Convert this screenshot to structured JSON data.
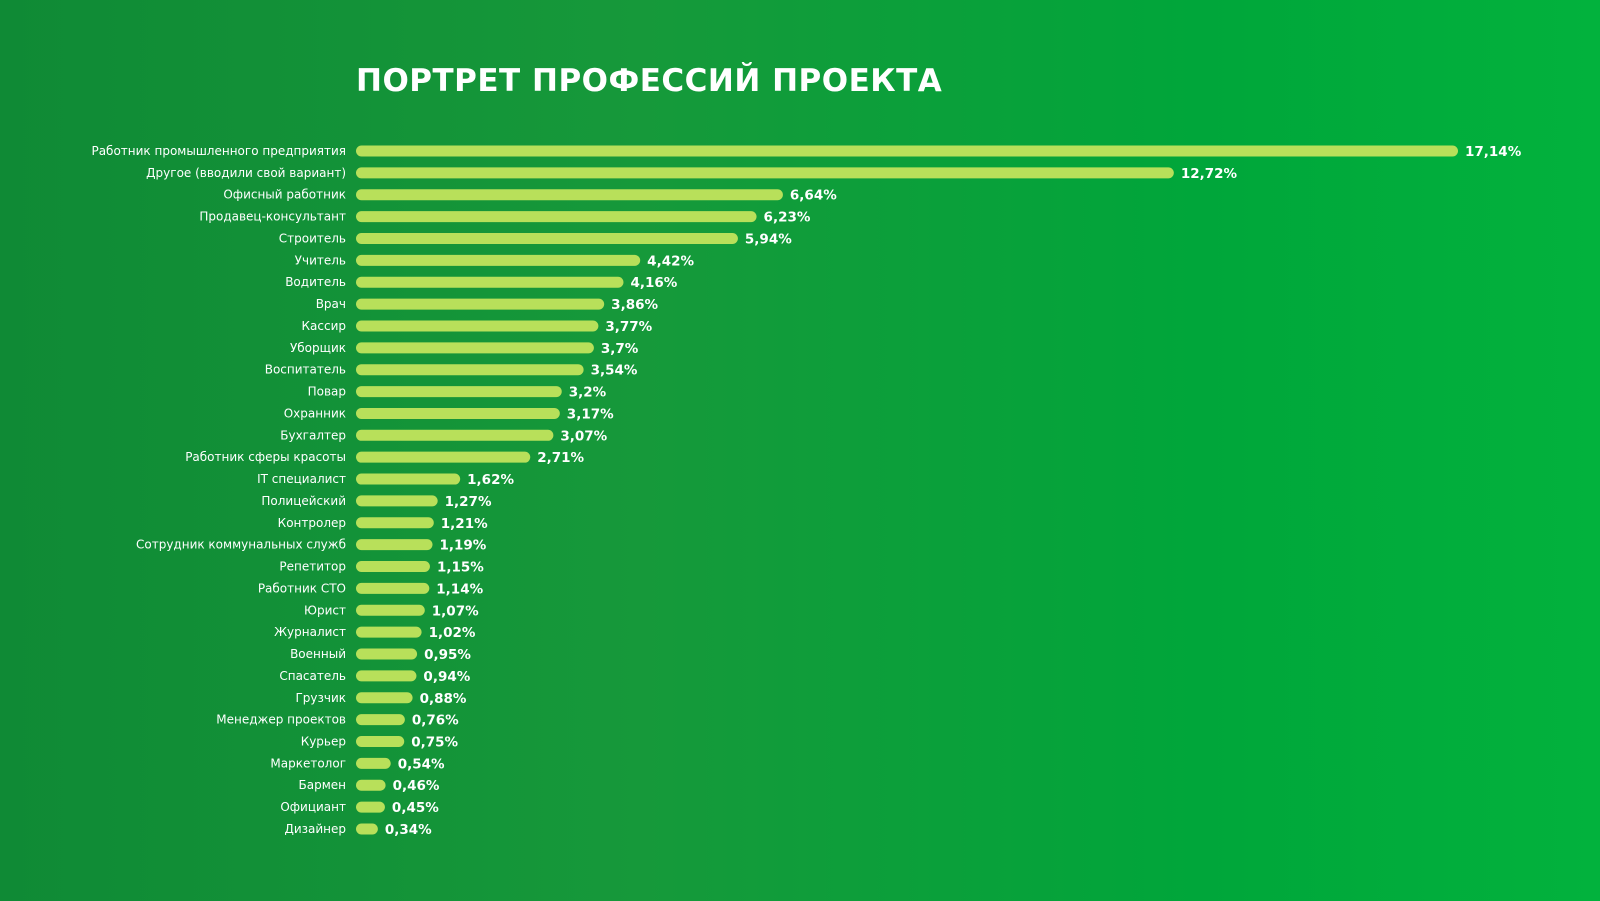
{
  "title": "ПОРТРЕТ ПРОФЕССИЙ ПРОЕКТА",
  "colors": {
    "bar": "#b8e05a",
    "background_left": "#0f8a35",
    "background_right": "#02b23d",
    "text": "#ffffff"
  },
  "chart_data": {
    "type": "bar",
    "orientation": "horizontal",
    "title": "ПОРТРЕТ ПРОФЕССИЙ ПРОЕКТА",
    "xlabel": "",
    "ylabel": "",
    "xlim": [
      0,
      17.14
    ],
    "grid": false,
    "legend": "none",
    "categories": [
      "Работник промышленного предприятия",
      "Другое (вводили свой вариант)",
      "Офисный работник",
      "Продавец-консультант",
      "Строитель",
      "Учитель",
      "Водитель",
      "Врач",
      "Кассир",
      "Уборщик",
      "Воспитатель",
      "Повар",
      "Охранник",
      "Бухгалтер",
      "Работник сферы красоты",
      "IT специалист",
      "Полицейский",
      "Контролер",
      "Сотрудник коммунальных служб",
      "Репетитор",
      "Работник СТО",
      "Юрист",
      "Журналист",
      "Военный",
      "Спасатель",
      "Грузчик",
      "Менеджер проектов",
      "Курьер",
      "Маркетолог",
      "Бармен",
      "Официант",
      "Дизайнер"
    ],
    "values": [
      17.14,
      12.72,
      6.64,
      6.23,
      5.94,
      4.42,
      4.16,
      3.86,
      3.77,
      3.7,
      3.54,
      3.2,
      3.17,
      3.07,
      2.71,
      1.62,
      1.27,
      1.21,
      1.19,
      1.15,
      1.14,
      1.07,
      1.02,
      0.95,
      0.94,
      0.88,
      0.76,
      0.75,
      0.54,
      0.46,
      0.45,
      0.34
    ],
    "value_labels": [
      "17,14%",
      "12,72%",
      "6,64%",
      "6,23%",
      "5,94%",
      "4,42%",
      "4,16%",
      "3,86%",
      "3,77%",
      "3,7%",
      "3,54%",
      "3,2%",
      "3,17%",
      "3,07%",
      "2,71%",
      "1,62%",
      "1,27%",
      "1,21%",
      "1,19%",
      "1,15%",
      "1,14%",
      "1,07%",
      "1,02%",
      "0,95%",
      "0,94%",
      "0,88%",
      "0,76%",
      "0,75%",
      "0,54%",
      "0,46%",
      "0,45%",
      "0,34%"
    ]
  }
}
